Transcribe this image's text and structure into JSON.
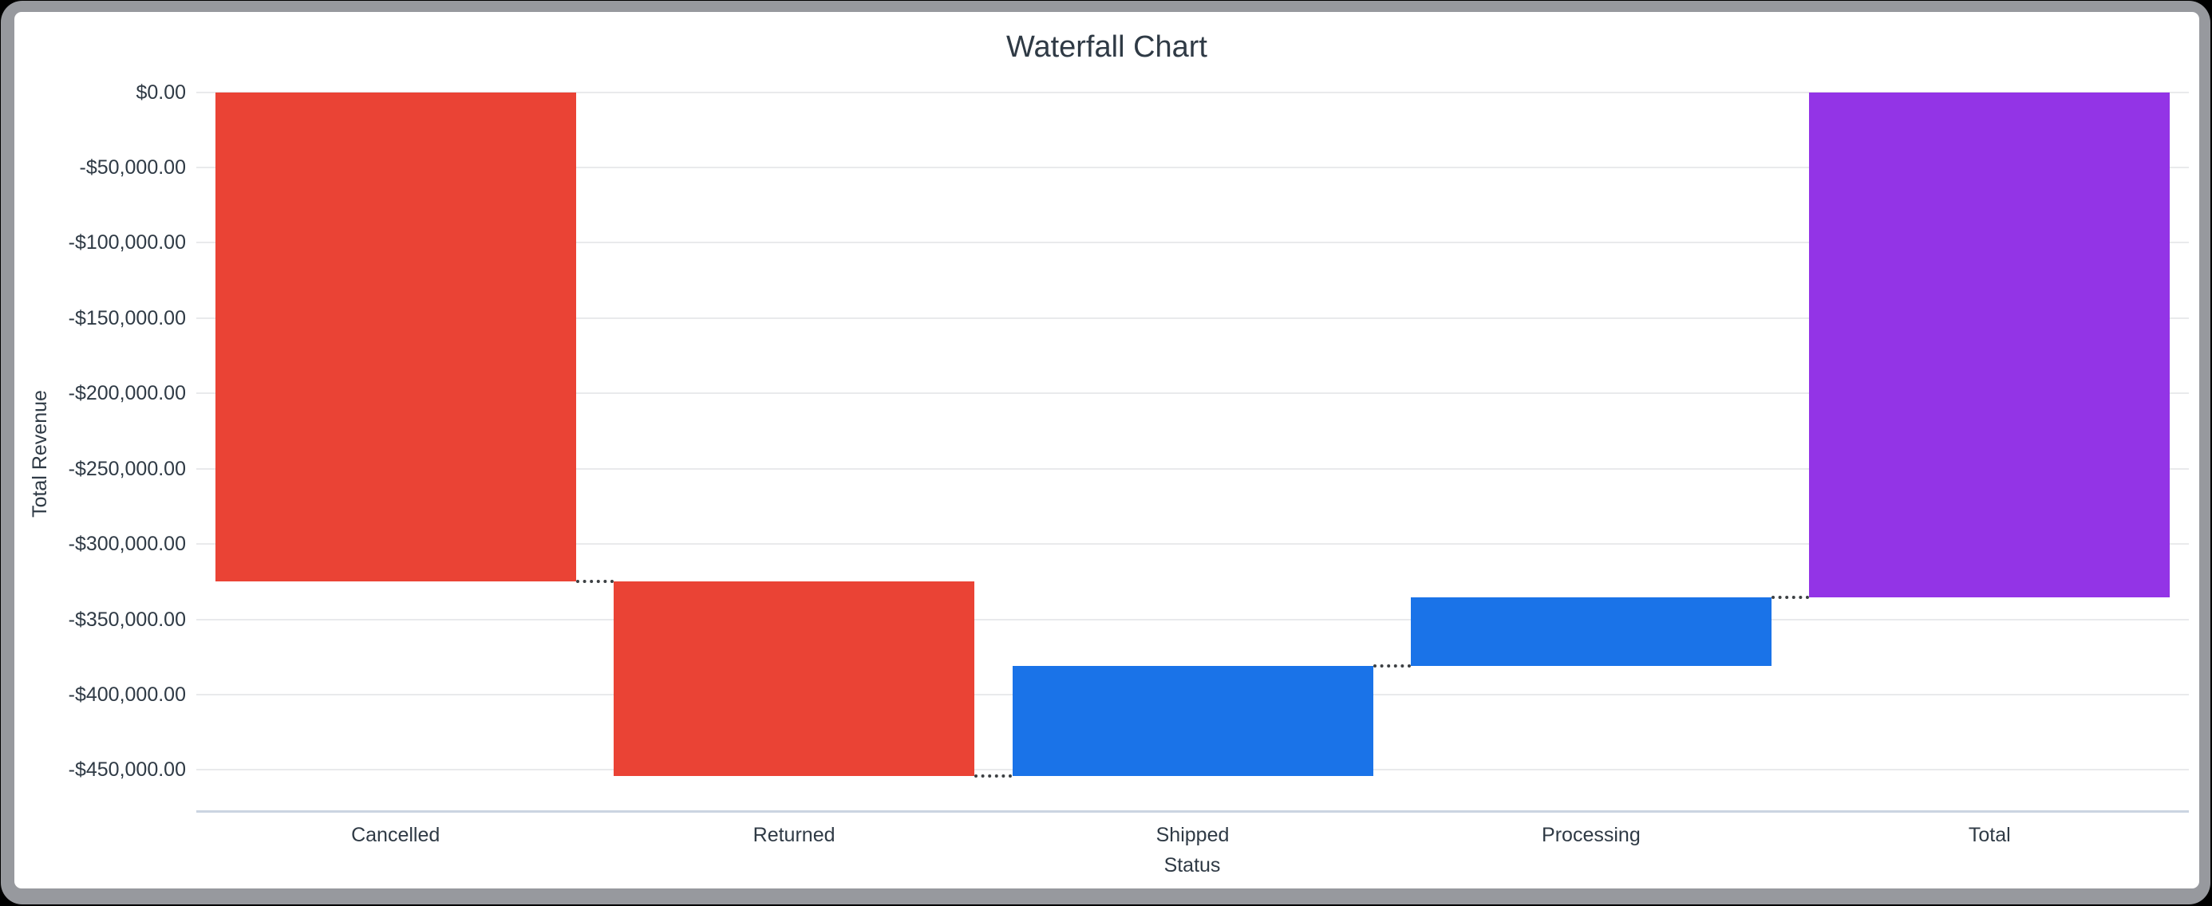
{
  "window": {
    "background_color": "#000000",
    "frame_color": "#97999E",
    "card_color": "#FFFFFF"
  },
  "chart": {
    "title": "Waterfall Chart",
    "y_axis": {
      "title": "Total Revenue",
      "ticks": [
        {
          "label": "$0.00",
          "value": 0
        },
        {
          "label": "-$50,000.00",
          "value": -50000
        },
        {
          "label": "-$100,000.00",
          "value": -100000
        },
        {
          "label": "-$150,000.00",
          "value": -150000
        },
        {
          "label": "-$200,000.00",
          "value": -200000
        },
        {
          "label": "-$250,000.00",
          "value": -250000
        },
        {
          "label": "-$300,000.00",
          "value": -300000
        },
        {
          "label": "-$350,000.00",
          "value": -350000
        },
        {
          "label": "-$400,000.00",
          "value": -400000
        },
        {
          "label": "-$450,000.00",
          "value": -450000
        }
      ]
    },
    "x_axis": {
      "title": "Status",
      "categories": [
        "Cancelled",
        "Returned",
        "Shipped",
        "Processing",
        "Total"
      ]
    },
    "colors": {
      "decrease": "#EA4335",
      "increase": "#1A73E8",
      "total": "#9334E6",
      "gridline": "#E9EAEC",
      "baseline": "#CBD4E1",
      "connector": "#3C4043",
      "text": "#2F3A45"
    }
  },
  "chart_data": {
    "type": "waterfall",
    "title": "Waterfall Chart",
    "xlabel": "Status",
    "ylabel": "Total Revenue",
    "categories": [
      "Cancelled",
      "Returned",
      "Shipped",
      "Processing",
      "Total"
    ],
    "bars": [
      {
        "category": "Cancelled",
        "delta": -324600,
        "start": 0,
        "end": -324600,
        "role": "decrease"
      },
      {
        "category": "Returned",
        "delta": -129200,
        "start": -324600,
        "end": -453800,
        "role": "decrease"
      },
      {
        "category": "Shipped",
        "delta": 72800,
        "start": -453800,
        "end": -381000,
        "role": "increase"
      },
      {
        "category": "Processing",
        "delta": 45600,
        "start": -381000,
        "end": -335400,
        "role": "increase"
      },
      {
        "category": "Total",
        "delta": -335400,
        "start": 0,
        "end": -335400,
        "role": "total"
      }
    ],
    "ylim": [
      -477000,
      0
    ],
    "grid": true,
    "legend": "none"
  }
}
